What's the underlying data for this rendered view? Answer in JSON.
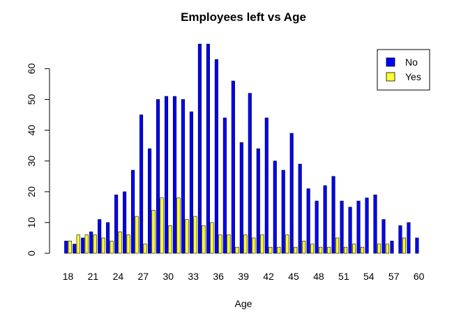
{
  "chart_data": {
    "type": "bar",
    "title": "Employees left vs Age",
    "xlabel": "Age",
    "ylabel": "",
    "ylim": [
      0,
      68
    ],
    "yticks": [
      0,
      10,
      20,
      30,
      40,
      50,
      60
    ],
    "categories": [
      "18",
      "19",
      "20",
      "21",
      "22",
      "23",
      "24",
      "25",
      "26",
      "27",
      "28",
      "29",
      "30",
      "31",
      "32",
      "33",
      "34",
      "35",
      "36",
      "37",
      "38",
      "39",
      "40",
      "41",
      "42",
      "43",
      "44",
      "45",
      "46",
      "47",
      "48",
      "49",
      "50",
      "51",
      "52",
      "53",
      "54",
      "55",
      "56",
      "57",
      "58",
      "59",
      "60"
    ],
    "xtick_labels_shown": [
      "18",
      "21",
      "24",
      "27",
      "30",
      "33",
      "36",
      "39",
      "42",
      "45",
      "48",
      "51",
      "54",
      "57",
      "60"
    ],
    "series": [
      {
        "name": "No",
        "color": "#0000ff",
        "values": [
          4,
          3,
          5,
          7,
          11,
          10,
          19,
          20,
          27,
          45,
          34,
          50,
          51,
          51,
          50,
          46,
          68,
          68,
          63,
          44,
          56,
          36,
          52,
          34,
          44,
          30,
          27,
          39,
          29,
          21,
          17,
          22,
          25,
          17,
          15,
          17,
          18,
          19,
          11,
          4,
          9,
          10,
          5
        ]
      },
      {
        "name": "Yes",
        "color": "#ffff33",
        "values": [
          4,
          6,
          6,
          6,
          5,
          4,
          7,
          6,
          12,
          3,
          14,
          18,
          9,
          18,
          11,
          12,
          9,
          10,
          6,
          6,
          2,
          6,
          5,
          6,
          2,
          2,
          6,
          2,
          4,
          3,
          2,
          2,
          5,
          2,
          3,
          2,
          0,
          3,
          3,
          0,
          5,
          0,
          0
        ]
      }
    ],
    "legend": {
      "position": "top-right",
      "entries": [
        "No",
        "Yes"
      ]
    },
    "grid": false
  }
}
